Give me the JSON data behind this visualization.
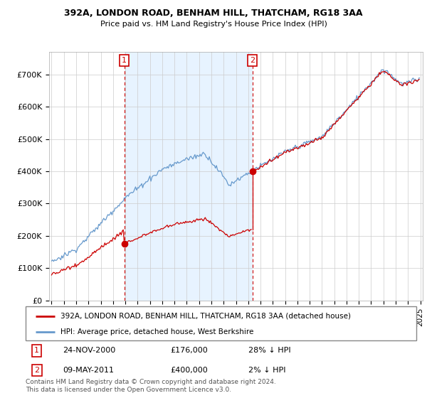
{
  "title_line1": "392A, LONDON ROAD, BENHAM HILL, THATCHAM, RG18 3AA",
  "title_line2": "Price paid vs. HM Land Registry's House Price Index (HPI)",
  "red_line_label": "392A, LONDON ROAD, BENHAM HILL, THATCHAM, RG18 3AA (detached house)",
  "blue_line_label": "HPI: Average price, detached house, West Berkshire",
  "annotation1": {
    "num": "1",
    "date": "24-NOV-2000",
    "price": "£176,000",
    "pct": "28% ↓ HPI"
  },
  "annotation2": {
    "num": "2",
    "date": "09-MAY-2011",
    "price": "£400,000",
    "pct": "2% ↓ HPI"
  },
  "footer": "Contains HM Land Registry data © Crown copyright and database right 2024.\nThis data is licensed under the Open Government Licence v3.0.",
  "ylim": [
    0,
    770000
  ],
  "yticks": [
    0,
    100000,
    200000,
    300000,
    400000,
    500000,
    600000,
    700000
  ],
  "ytick_labels": [
    "£0",
    "£100K",
    "£200K",
    "£300K",
    "£400K",
    "£500K",
    "£600K",
    "£700K"
  ],
  "red_color": "#cc0000",
  "blue_color": "#6699cc",
  "shade_color": "#ddeeff",
  "dashed_color": "#cc0000",
  "annotation_box_color": "#cc0000",
  "background_color": "#ffffff",
  "grid_color": "#cccccc",
  "t1": 2000.917,
  "t2": 2011.333,
  "p1": 176000,
  "p2": 400000,
  "start_year": 1995,
  "end_year": 2025
}
